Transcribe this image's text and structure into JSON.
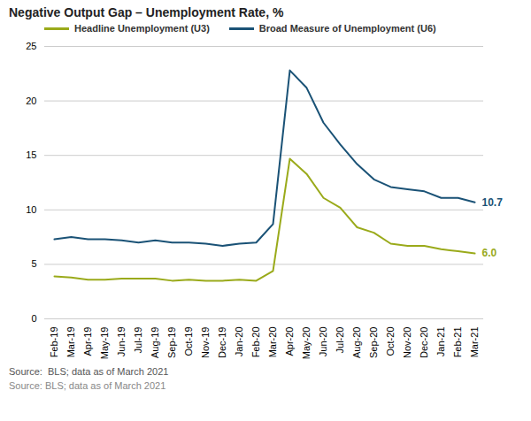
{
  "chart_data": {
    "type": "line",
    "title": "Negative Output Gap – Unemployment Rate, %",
    "categories": [
      "Feb-19",
      "Mar-19",
      "Apr-19",
      "May-19",
      "Jun-19",
      "Jul-19",
      "Aug-19",
      "Sep-19",
      "Oct-19",
      "Nov-19",
      "Dec-19",
      "Jan-20",
      "Feb-20",
      "Mar-20",
      "Apr-20",
      "May-20",
      "Jun-20",
      "Jul-20",
      "Aug-20",
      "Sep-20",
      "Oct-20",
      "Nov-20",
      "Dec-20",
      "Jan-21",
      "Feb-21",
      "Mar-21"
    ],
    "series": [
      {
        "name": "Headline Unemployment (U3)",
        "color": "#9aaa1a",
        "values": [
          3.9,
          3.8,
          3.6,
          3.6,
          3.7,
          3.7,
          3.7,
          3.5,
          3.6,
          3.5,
          3.5,
          3.6,
          3.5,
          4.4,
          14.7,
          13.3,
          11.1,
          10.2,
          8.4,
          7.9,
          6.9,
          6.7,
          6.7,
          6.4,
          6.2,
          6.0
        ]
      },
      {
        "name": "Broad Measure of Unemployment (U6)",
        "color": "#1a5276",
        "values": [
          7.3,
          7.5,
          7.3,
          7.3,
          7.2,
          7.0,
          7.2,
          7.0,
          7.0,
          6.9,
          6.7,
          6.9,
          7.0,
          8.7,
          22.8,
          21.2,
          18.0,
          16.0,
          14.2,
          12.8,
          12.1,
          11.9,
          11.7,
          11.1,
          11.1,
          10.7
        ]
      }
    ],
    "ylim": [
      0,
      25
    ],
    "yticks": [
      0,
      5,
      10,
      15,
      20,
      25
    ],
    "grid": true,
    "legend": "top",
    "annotations": [
      {
        "text": "10.7",
        "x": "Mar-21",
        "y": 10.7,
        "color": "#1a5276"
      },
      {
        "text": "6.0",
        "x": "Mar-21",
        "y": 6.0,
        "color": "#9aaa1a"
      }
    ],
    "caption": [
      "Source:  BLS; data as of March 2021",
      "Source: BLS; data as of March 2021"
    ]
  }
}
